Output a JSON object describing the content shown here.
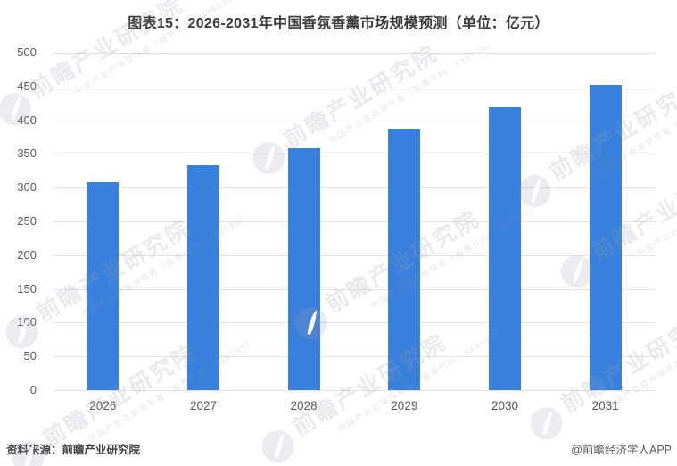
{
  "title": "图表15：2026-2031年中国香氛香薰市场规模预测（单位：亿元）",
  "chart_data": {
    "type": "bar",
    "title": "图表15：2026-2031年中国香氛香薰市场规模预测（单位：亿元）",
    "categories": [
      "2026",
      "2027",
      "2028",
      "2029",
      "2030",
      "2031"
    ],
    "values": [
      308,
      333,
      359,
      388,
      419,
      453
    ],
    "xlabel": "",
    "ylabel": "",
    "unit": "亿元",
    "ylim": [
      0,
      500
    ],
    "ytick_step": 50,
    "yticks": [
      "0",
      "50",
      "100",
      "150",
      "200",
      "250",
      "300",
      "350",
      "400",
      "450",
      "500"
    ],
    "grid": true,
    "legend": false,
    "bar_color": "#3a80dd"
  },
  "watermark": {
    "text": "前瞻产业研究院",
    "subtext": "中国产业咨询领导者（股票代码：839599）"
  },
  "footer": {
    "source": "资料来源：前瞻产业研究院",
    "credit": "@前瞻经济学人APP"
  },
  "colors": {
    "bar": "#3a80dd",
    "gridline": "#e3e3e3",
    "tick_text": "#595959",
    "title_text": "#3a3a3a"
  }
}
